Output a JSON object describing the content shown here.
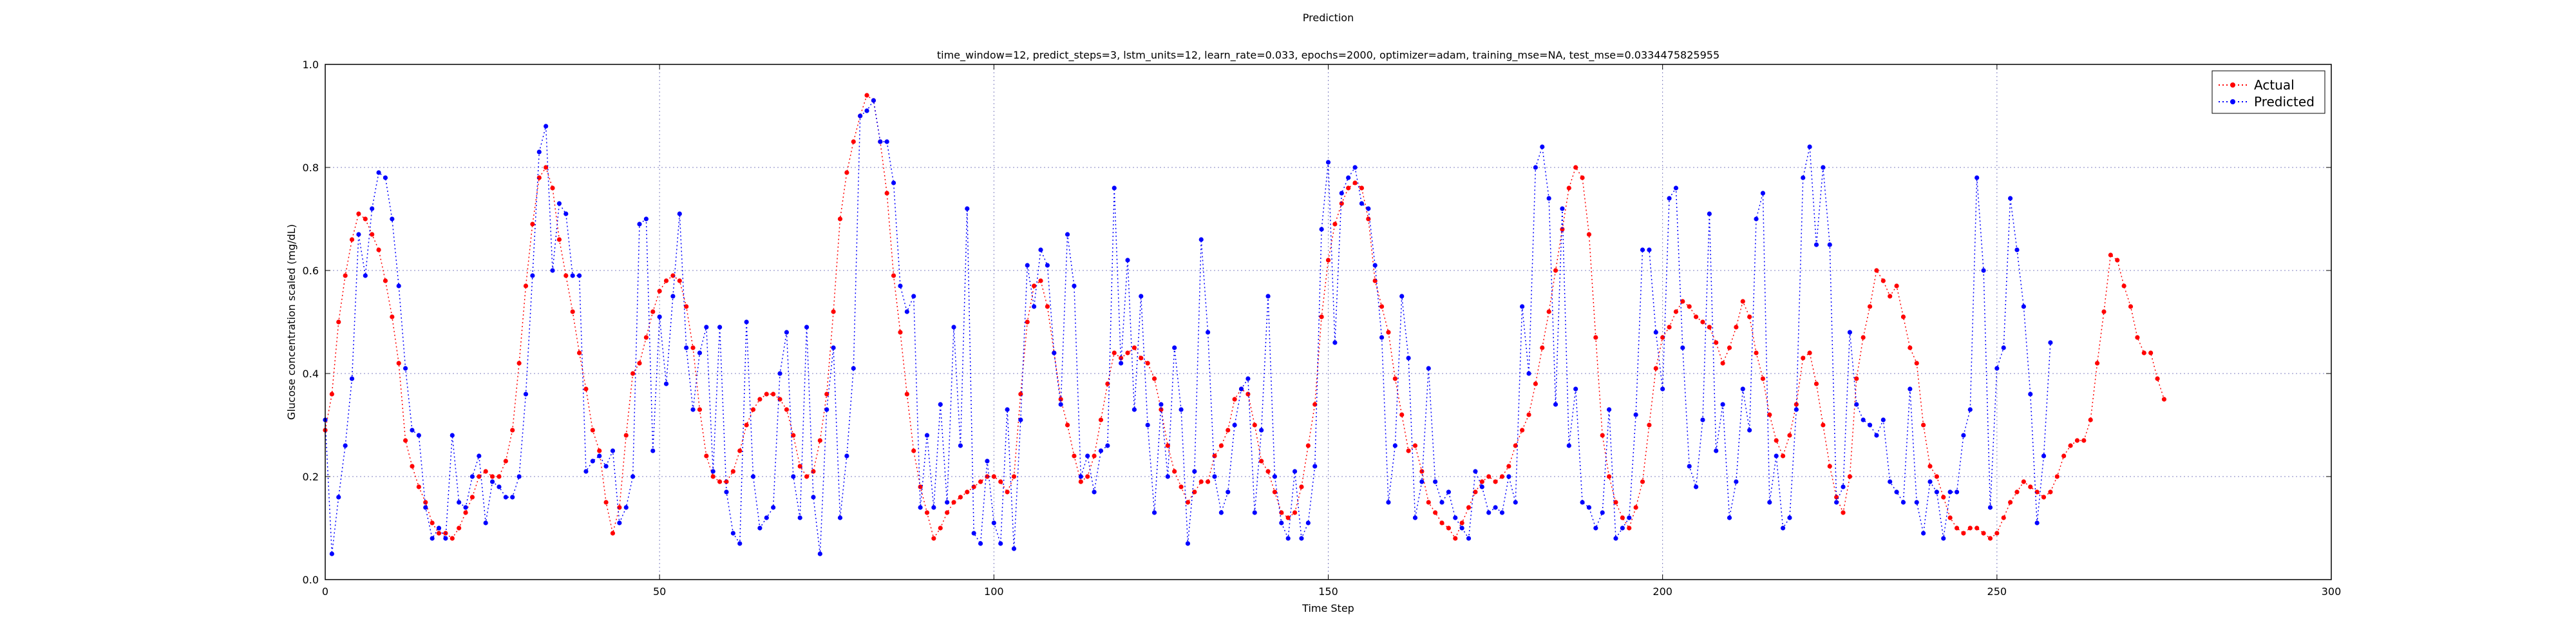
{
  "chart_data": {
    "type": "line",
    "title": "Prediction",
    "subtitle": "time_window=12, predict_steps=3, lstm_units=12, learn_rate=0.033, epochs=2000, optimizer=adam, training_mse=NA, test_mse=0.0334475825955",
    "xlabel": "Time Step",
    "ylabel": "Glucose concentration scaled (mg/dL)",
    "xlim": [
      0,
      300
    ],
    "ylim": [
      0.0,
      1.0
    ],
    "xticks": [
      0,
      50,
      100,
      150,
      200,
      250,
      300
    ],
    "yticks": [
      0.0,
      0.2,
      0.4,
      0.6,
      0.8,
      1.0
    ],
    "xtick_labels": [
      "0",
      "50",
      "100",
      "150",
      "200",
      "250",
      "300"
    ],
    "ytick_labels": [
      "0.0",
      "0.2",
      "0.4",
      "0.6",
      "0.8",
      "1.0"
    ],
    "grid": true,
    "legend_position": "top-right",
    "series": [
      {
        "name": "Actual",
        "color": "#ff0000",
        "values": [
          0.29,
          0.36,
          0.5,
          0.59,
          0.66,
          0.71,
          0.7,
          0.67,
          0.64,
          0.58,
          0.51,
          0.42,
          0.27,
          0.22,
          0.18,
          0.15,
          0.11,
          0.09,
          0.09,
          0.08,
          0.1,
          0.13,
          0.16,
          0.2,
          0.21,
          0.2,
          0.2,
          0.23,
          0.29,
          0.42,
          0.57,
          0.69,
          0.78,
          0.8,
          0.76,
          0.66,
          0.59,
          0.52,
          0.44,
          0.37,
          0.29,
          0.25,
          0.15,
          0.09,
          0.14,
          0.28,
          0.4,
          0.42,
          0.47,
          0.52,
          0.56,
          0.58,
          0.59,
          0.58,
          0.53,
          0.45,
          0.33,
          0.24,
          0.2,
          0.19,
          0.19,
          0.21,
          0.25,
          0.3,
          0.33,
          0.35,
          0.36,
          0.36,
          0.35,
          0.33,
          0.28,
          0.22,
          0.2,
          0.21,
          0.27,
          0.36,
          0.52,
          0.7,
          0.79,
          0.85,
          0.9,
          0.94,
          0.93,
          0.85,
          0.75,
          0.59,
          0.48,
          0.36,
          0.25,
          0.18,
          0.13,
          0.08,
          0.1,
          0.13,
          0.15,
          0.16,
          0.17,
          0.18,
          0.19,
          0.2,
          0.2,
          0.19,
          0.17,
          0.2,
          0.36,
          0.5,
          0.57,
          0.58,
          0.53,
          0.44,
          0.35,
          0.3,
          0.24,
          0.19,
          0.2,
          0.24,
          0.31,
          0.38,
          0.44,
          0.43,
          0.44,
          0.45,
          0.43,
          0.42,
          0.39,
          0.33,
          0.26,
          0.21,
          0.18,
          0.15,
          0.17,
          0.19,
          0.19,
          0.24,
          0.26,
          0.29,
          0.35,
          0.37,
          0.36,
          0.3,
          0.23,
          0.21,
          0.17,
          0.13,
          0.12,
          0.13,
          0.18,
          0.26,
          0.34,
          0.51,
          0.62,
          0.69,
          0.73,
          0.76,
          0.77,
          0.76,
          0.7,
          0.58,
          0.53,
          0.48,
          0.39,
          0.32,
          0.25,
          0.26,
          0.21,
          0.15,
          0.13,
          0.11,
          0.1,
          0.08,
          0.11,
          0.14,
          0.17,
          0.19,
          0.2,
          0.19,
          0.2,
          0.22,
          0.26,
          0.29,
          0.32,
          0.38,
          0.45,
          0.52,
          0.6,
          0.68,
          0.76,
          0.8,
          0.78,
          0.67,
          0.47,
          0.28,
          0.2,
          0.15,
          0.12,
          0.1,
          0.14,
          0.19,
          0.3,
          0.41,
          0.47,
          0.49,
          0.52,
          0.54,
          0.53,
          0.51,
          0.5,
          0.49,
          0.46,
          0.42,
          0.45,
          0.49,
          0.54,
          0.51,
          0.44,
          0.39,
          0.32,
          0.27,
          0.24,
          0.28,
          0.34,
          0.43,
          0.44,
          0.38,
          0.3,
          0.22,
          0.16,
          0.13,
          0.2,
          0.39,
          0.47,
          0.53,
          0.6,
          0.58,
          0.55,
          0.57,
          0.51,
          0.45,
          0.42,
          0.3,
          0.22,
          0.2,
          0.16,
          0.12,
          0.1,
          0.09,
          0.1,
          0.1,
          0.09,
          0.08,
          0.09,
          0.12,
          0.15,
          0.17,
          0.19,
          0.18,
          0.17,
          0.16,
          0.17,
          0.2,
          0.24,
          0.26,
          0.27,
          0.27,
          0.31,
          0.42,
          0.52,
          0.63,
          0.62,
          0.57,
          0.53,
          0.47,
          0.44,
          0.44,
          0.39,
          0.35
        ]
      },
      {
        "name": "Predicted",
        "color": "#0000ff",
        "values": [
          0.31,
          0.05,
          0.16,
          0.26,
          0.39,
          0.67,
          0.59,
          0.72,
          0.79,
          0.78,
          0.7,
          0.57,
          0.41,
          0.29,
          0.28,
          0.14,
          0.08,
          0.1,
          0.08,
          0.28,
          0.15,
          0.14,
          0.2,
          0.24,
          0.11,
          0.19,
          0.18,
          0.16,
          0.16,
          0.2,
          0.36,
          0.59,
          0.83,
          0.88,
          0.6,
          0.73,
          0.71,
          0.59,
          0.59,
          0.21,
          0.23,
          0.24,
          0.22,
          0.25,
          0.11,
          0.14,
          0.2,
          0.69,
          0.7,
          0.25,
          0.51,
          0.38,
          0.55,
          0.71,
          0.45,
          0.33,
          0.44,
          0.49,
          0.21,
          0.49,
          0.17,
          0.09,
          0.07,
          0.5,
          0.2,
          0.1,
          0.12,
          0.14,
          0.4,
          0.48,
          0.2,
          0.12,
          0.49,
          0.16,
          0.05,
          0.33,
          0.45,
          0.12,
          0.24,
          0.41,
          0.9,
          0.91,
          0.93,
          0.85,
          0.85,
          0.77,
          0.57,
          0.52,
          0.55,
          0.14,
          0.28,
          0.14,
          0.34,
          0.15,
          0.49,
          0.26,
          0.72,
          0.09,
          0.07,
          0.23,
          0.11,
          0.07,
          0.33,
          0.06,
          0.31,
          0.61,
          0.53,
          0.64,
          0.61,
          0.44,
          0.34,
          0.67,
          0.57,
          0.2,
          0.24,
          0.17,
          0.25,
          0.26,
          0.76,
          0.42,
          0.62,
          0.33,
          0.55,
          0.3,
          0.13,
          0.34,
          0.2,
          0.45,
          0.33,
          0.07,
          0.21,
          0.66,
          0.48,
          0.2,
          0.13,
          0.17,
          0.3,
          0.37,
          0.39,
          0.13,
          0.29,
          0.55,
          0.2,
          0.11,
          0.08,
          0.21,
          0.08,
          0.11,
          0.22,
          0.68,
          0.81,
          0.46,
          0.75,
          0.78,
          0.8,
          0.73,
          0.72,
          0.61,
          0.47,
          0.15,
          0.26,
          0.55,
          0.43,
          0.12,
          0.19,
          0.41,
          0.19,
          0.15,
          0.17,
          0.12,
          0.1,
          0.08,
          0.21,
          0.18,
          0.13,
          0.14,
          0.13,
          0.2,
          0.15,
          0.53,
          0.4,
          0.8,
          0.84,
          0.74,
          0.34,
          0.72,
          0.26,
          0.37,
          0.15,
          0.14,
          0.1,
          0.13,
          0.33,
          0.08,
          0.1,
          0.12,
          0.32,
          0.64,
          0.64,
          0.48,
          0.37,
          0.74,
          0.76,
          0.45,
          0.22,
          0.18,
          0.31,
          0.71,
          0.25,
          0.34,
          0.12,
          0.19,
          0.37,
          0.29,
          0.7,
          0.75,
          0.15,
          0.24,
          0.1,
          0.12,
          0.33,
          0.78,
          0.84,
          0.65,
          0.8,
          0.65,
          0.15,
          0.18,
          0.48,
          0.34,
          0.31,
          0.3,
          0.28,
          0.31,
          0.19,
          0.17,
          0.15,
          0.37,
          0.15,
          0.09,
          0.19,
          0.17,
          0.08,
          0.17,
          0.17,
          0.28,
          0.33,
          0.78,
          0.6,
          0.14,
          0.41,
          0.45,
          0.74,
          0.64,
          0.53,
          0.36,
          0.11,
          0.24,
          0.46
        ]
      }
    ]
  }
}
